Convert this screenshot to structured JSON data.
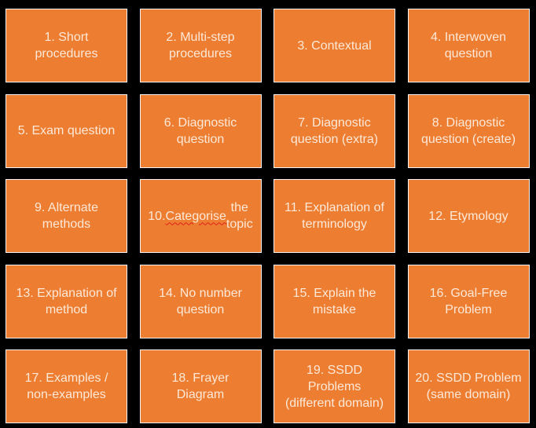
{
  "colors": {
    "background": "#000000",
    "card": "#ed7d31",
    "text": "#fde9d9",
    "border": "#f4f4f4"
  },
  "cards": [
    "1. Short\nprocedures",
    "2. Multi-step\nprocedures",
    "3. Contextual",
    "4. Interwoven\nquestion",
    "5. Exam question",
    "6. Diagnostic\nquestion",
    "7. Diagnostic\nquestion (extra)",
    "8. Diagnostic\nquestion (create)",
    "9. Alternate\nmethods",
    "10. Categorise the\ntopic",
    "11. Explanation of\nterminology",
    "12. Etymology",
    "13. Explanation of\nmethod",
    "14. No number\nquestion",
    "15. Explain the\nmistake",
    "16. Goal-Free\nProblem",
    "17. Examples /\nnon-examples",
    "18. Frayer\nDiagram",
    "19. SSDD\nProblems\n(different domain)",
    "20. SSDD Problem\n(same domain)"
  ]
}
